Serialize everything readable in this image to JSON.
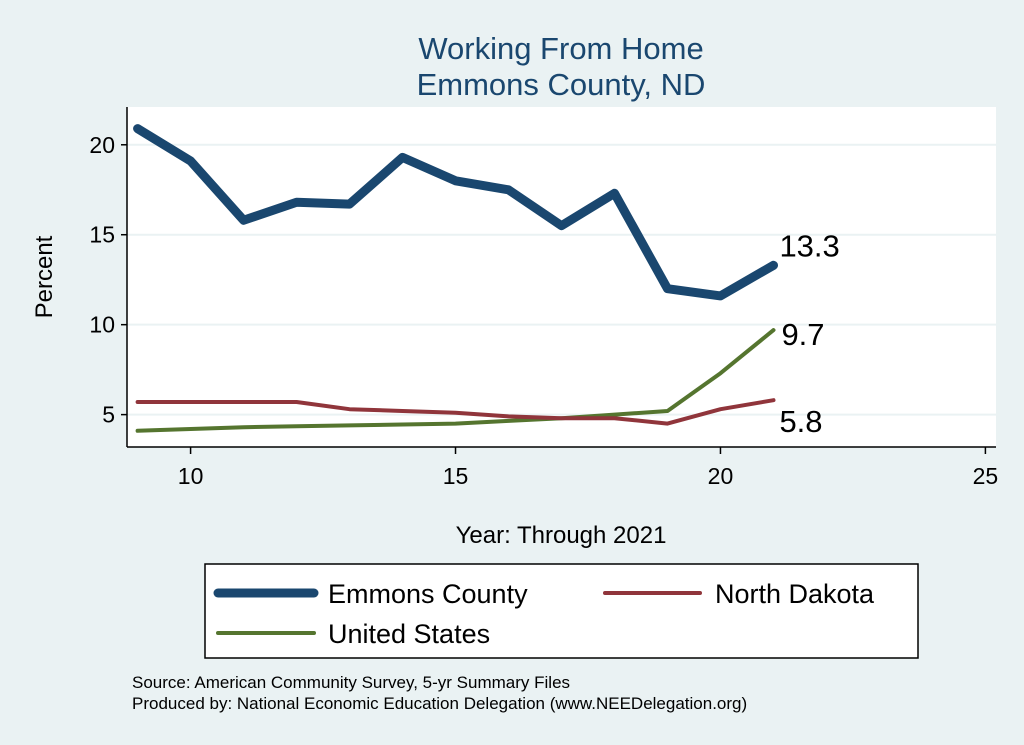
{
  "chart_data": {
    "type": "line",
    "title": [
      "Working From Home",
      "Emmons County, ND"
    ],
    "xlabel": "Year: Through 2021",
    "ylabel": "Percent",
    "xlim": [
      8.8,
      25.2
    ],
    "ylim": [
      3.2,
      22.1
    ],
    "xticks": [
      10,
      15,
      20,
      25
    ],
    "yticks": [
      5,
      10,
      15,
      20
    ],
    "grid": "horizontal",
    "legend_position": "bottom",
    "x": [
      9,
      10,
      11,
      12,
      13,
      14,
      15,
      16,
      17,
      18,
      19,
      20,
      21
    ],
    "series": [
      {
        "name": "Emmons County",
        "color": "#1a476f",
        "values": [
          20.9,
          19.1,
          15.8,
          16.8,
          16.7,
          19.3,
          18.0,
          17.5,
          15.5,
          17.3,
          12.0,
          11.6,
          13.3
        ],
        "end_label": "13.3"
      },
      {
        "name": "North Dakota",
        "color": "#90353b",
        "values": [
          5.7,
          5.7,
          5.7,
          5.7,
          5.3,
          5.2,
          5.1,
          4.9,
          4.8,
          4.8,
          4.5,
          5.3,
          5.8
        ],
        "end_label": "5.8"
      },
      {
        "name": "United States",
        "color": "#55752f",
        "values": [
          4.1,
          4.2,
          4.3,
          4.35,
          4.4,
          4.45,
          4.5,
          4.65,
          4.8,
          5.0,
          5.2,
          7.3,
          9.7
        ],
        "end_label": "9.7"
      }
    ]
  },
  "notes": [
    "Source: American Community Survey, 5-yr Summary Files",
    "Produced by: National Economic Education Delegation (www.NEEDelegation.org)"
  ]
}
